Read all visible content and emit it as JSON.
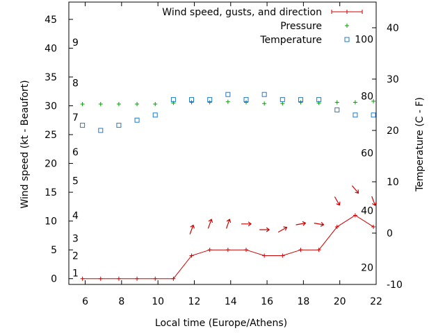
{
  "chart_data": {
    "type": "line",
    "xlabel": "Local time (Europe/Athens)",
    "ylabel": "Wind speed (kt - Beaufort)",
    "y2label": "Temperature (C - F)",
    "xlim": [
      5.1,
      22.0
    ],
    "ylim": [
      -1,
      48
    ],
    "y2lim": [
      -10,
      45
    ],
    "x_ticks": [
      6,
      8,
      10,
      12,
      14,
      16,
      18,
      20,
      22
    ],
    "y_ticks": [
      0,
      5,
      10,
      15,
      20,
      25,
      30,
      35,
      40,
      45
    ],
    "y2_ticks": [
      -10,
      0,
      10,
      20,
      30,
      40
    ],
    "beaufort_labels": [
      {
        "label": "1",
        "y": 1
      },
      {
        "label": "2",
        "y": 4
      },
      {
        "label": "3",
        "y": 7
      },
      {
        "label": "4",
        "y": 11
      },
      {
        "label": "5",
        "y": 17
      },
      {
        "label": "6",
        "y": 22
      },
      {
        "label": "7",
        "y": 28
      },
      {
        "label": "8",
        "y": 34
      },
      {
        "label": "9",
        "y": 41
      }
    ],
    "fahrenheit_labels": [
      {
        "label": "20",
        "y2": -6.7
      },
      {
        "label": "40",
        "y2": 4.4
      },
      {
        "label": "60",
        "y2": 15.6
      },
      {
        "label": "80",
        "y2": 26.7
      },
      {
        "label": "100",
        "y2": 37.8
      }
    ],
    "legend_position": "top-right",
    "series": [
      {
        "name": "Wind speed, gusts, and direction",
        "color": "#cc0000",
        "axis": "y",
        "x": [
          5.85,
          6.85,
          7.85,
          8.85,
          9.85,
          10.85,
          11.85,
          12.85,
          13.85,
          14.85,
          15.85,
          16.85,
          17.85,
          18.85,
          19.85,
          20.85,
          21.85
        ],
        "values": [
          0,
          0,
          0,
          0,
          0,
          0,
          4,
          5,
          5,
          5,
          4,
          4,
          5,
          5,
          9,
          11,
          9
        ],
        "direction_deg": [
          null,
          null,
          null,
          null,
          null,
          null,
          200,
          200,
          200,
          270,
          270,
          240,
          260,
          280,
          330,
          320,
          340
        ]
      },
      {
        "name": "Pressure",
        "color": "#00a000",
        "axis": "y",
        "x": [
          5.85,
          6.85,
          7.85,
          8.85,
          9.85,
          10.85,
          11.85,
          12.85,
          13.85,
          14.85,
          15.85,
          16.85,
          17.85,
          18.85,
          19.85,
          20.85,
          21.85
        ],
        "values": [
          30.3,
          30.3,
          30.3,
          30.3,
          30.3,
          30.5,
          30.6,
          30.6,
          30.7,
          30.6,
          30.4,
          30.4,
          30.6,
          30.5,
          30.6,
          30.6,
          30.8
        ]
      },
      {
        "name": "Temperature",
        "color": "#1f78c8",
        "axis": "y2",
        "x": [
          5.85,
          6.85,
          7.85,
          8.85,
          9.85,
          10.85,
          11.85,
          12.85,
          13.85,
          14.85,
          15.85,
          16.85,
          17.85,
          18.85,
          19.85,
          20.85,
          21.85
        ],
        "values": [
          21,
          20,
          21,
          22,
          23,
          26,
          26,
          26,
          27,
          26,
          27,
          26,
          26,
          26,
          24,
          23,
          23
        ]
      }
    ]
  }
}
